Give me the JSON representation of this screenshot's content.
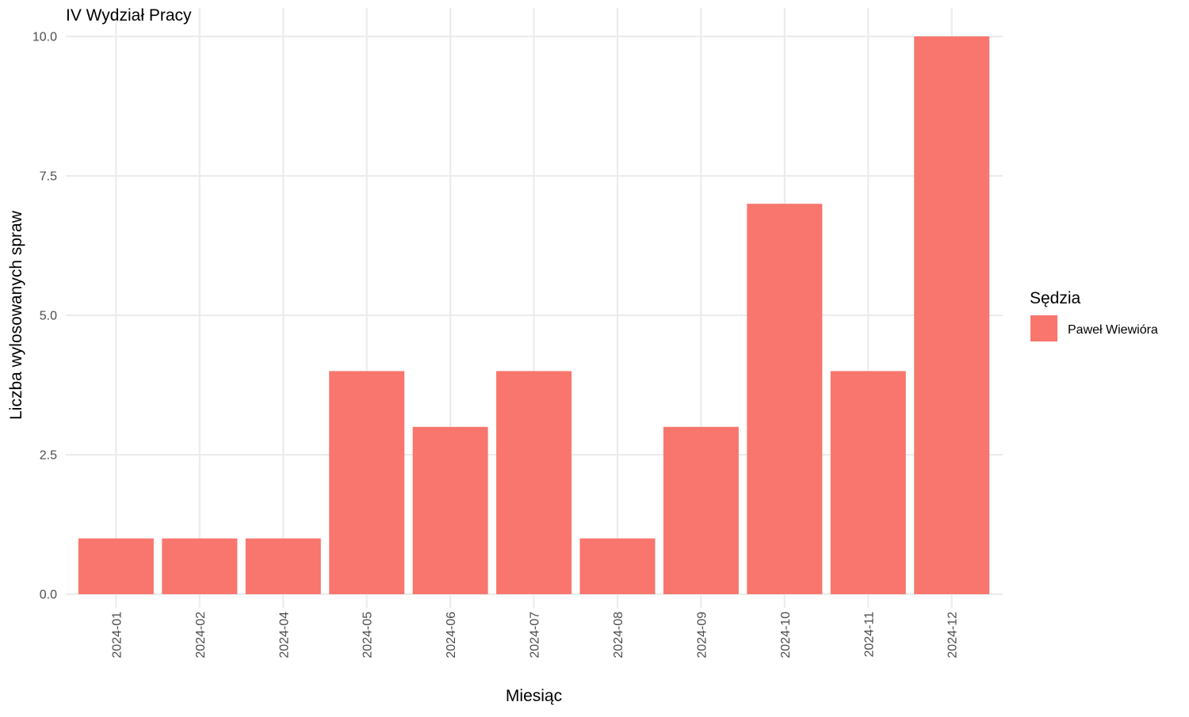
{
  "chart_data": {
    "type": "bar",
    "title": "IV Wydział Pracy",
    "xlabel": "Miesiąc",
    "ylabel": "Liczba wylosowanych spraw",
    "categories": [
      "2024-01",
      "2024-02",
      "2024-04",
      "2024-05",
      "2024-06",
      "2024-07",
      "2024-08",
      "2024-09",
      "2024-10",
      "2024-11",
      "2024-12"
    ],
    "series": [
      {
        "name": "Paweł Wiewióra",
        "values": [
          1,
          1,
          1,
          4,
          3,
          4,
          1,
          3,
          7,
          4,
          10
        ],
        "color": "#F8766D"
      }
    ],
    "ylim": [
      0,
      10
    ],
    "yticks": [
      "0.0",
      "2.5",
      "5.0",
      "7.5",
      "10.0"
    ],
    "ytick_values": [
      0,
      2.5,
      5,
      7.5,
      10
    ],
    "grid": true,
    "legend": {
      "title": "Sędzia",
      "position": "right"
    }
  }
}
